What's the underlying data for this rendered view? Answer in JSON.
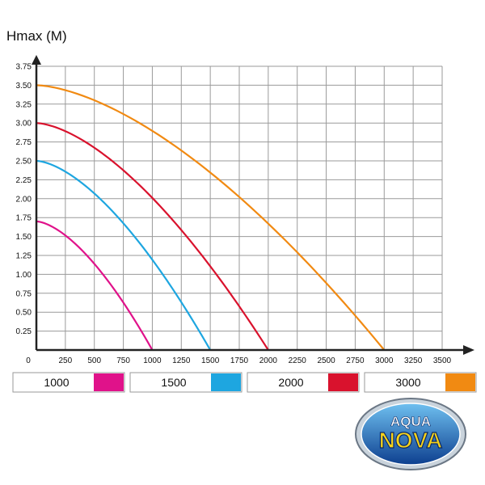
{
  "chart_data": {
    "type": "line",
    "title": "",
    "ylabel": "Hmax (M)",
    "xlabel": "",
    "xlim": [
      0,
      3500
    ],
    "ylim": [
      0,
      3.75
    ],
    "x_ticks": [
      "0",
      "250",
      "500",
      "750",
      "1000",
      "1250",
      "1500",
      "1750",
      "2000",
      "2250",
      "2500",
      "2750",
      "3000",
      "3250",
      "3500"
    ],
    "y_ticks": [
      "0.25",
      "0.50",
      "0.75",
      "1.00",
      "1.25",
      "1.50",
      "1.75",
      "2.00",
      "2.25",
      "2.50",
      "2.75",
      "3.00",
      "3.25",
      "3.50",
      "3.75"
    ],
    "grid": true,
    "legend_position": "bottom",
    "series": [
      {
        "name": "1000",
        "color": "#e0128a",
        "max_flow": 1000,
        "max_head": 1.7
      },
      {
        "name": "1500",
        "color": "#1ea6e0",
        "max_flow": 1500,
        "max_head": 2.5
      },
      {
        "name": "2000",
        "color": "#d9122d",
        "max_flow": 2000,
        "max_head": 3.0
      },
      {
        "name": "3000",
        "color": "#f18a12",
        "max_flow": 3000,
        "max_head": 3.5
      }
    ]
  },
  "logo": {
    "line1": "AQUA",
    "line2": "NOVA"
  }
}
